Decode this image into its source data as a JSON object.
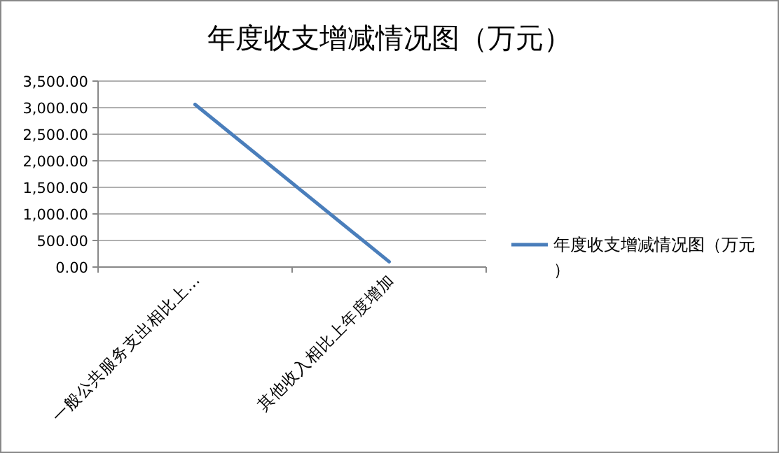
{
  "chart_data": {
    "type": "line",
    "title": "年度收支增减情况图（万元）",
    "categories": [
      "一般公共服务支出相比上…",
      "其他收入相比上年度增加"
    ],
    "series": [
      {
        "name": "年度收支增减情况图（万元）",
        "color": "#4a7ebb",
        "values": [
          3060,
          100
        ]
      }
    ],
    "ylim": [
      0,
      3500
    ],
    "yticks": [
      {
        "value": 0,
        "label": "0.00"
      },
      {
        "value": 500,
        "label": "500.00"
      },
      {
        "value": 1000,
        "label": "1,000.00"
      },
      {
        "value": 1500,
        "label": "1,500.00"
      },
      {
        "value": 2000,
        "label": "2,000.00"
      },
      {
        "value": 2500,
        "label": "2,500.00"
      },
      {
        "value": 3000,
        "label": "3,000.00"
      },
      {
        "value": 3500,
        "label": "3,500.00"
      }
    ],
    "grid": "y",
    "legend": "right"
  }
}
